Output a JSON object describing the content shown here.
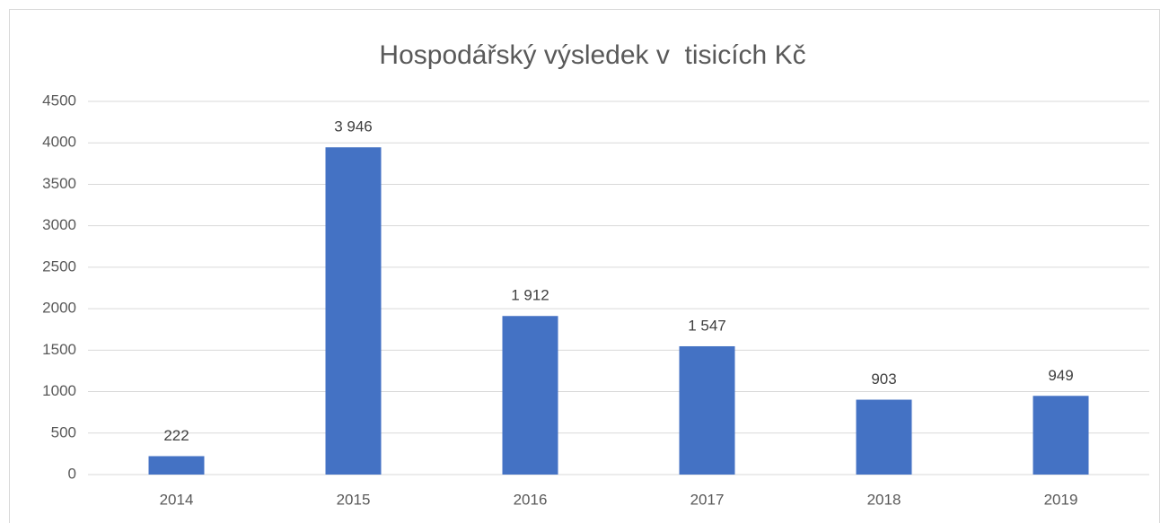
{
  "chart_data": {
    "type": "bar",
    "title": "Hospodářský výsledek v  tisicích Kč",
    "categories": [
      "2014",
      "2015",
      "2016",
      "2017",
      "2018",
      "2019"
    ],
    "values": [
      222,
      3946,
      1912,
      1547,
      903,
      949
    ],
    "value_labels": [
      "222",
      "3 946",
      "1 912",
      "1 547",
      "903",
      "949"
    ],
    "color": "#4472c4",
    "ylim": [
      0,
      4500
    ],
    "yticks": [
      0,
      500,
      1000,
      1500,
      2000,
      2500,
      3000,
      3500,
      4000,
      4500
    ],
    "grid": true
  }
}
